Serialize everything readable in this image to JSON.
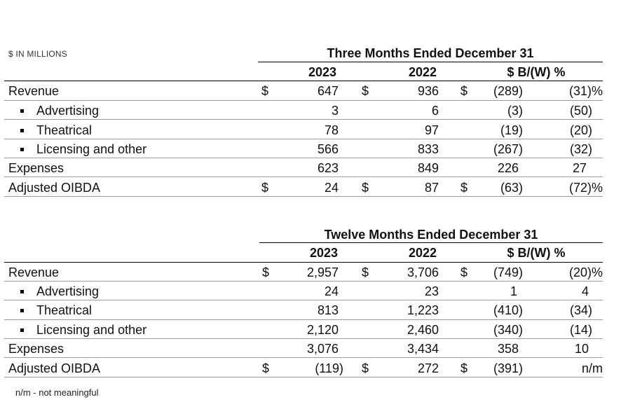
{
  "units_label": "$ IN MILLIONS",
  "footnote": "n/m - not meaningful",
  "tables": [
    {
      "period": "Three Months Ended December 31",
      "columns": [
        "2023",
        "2022",
        "$ B/(W) %"
      ],
      "rows": [
        {
          "label": "Revenue",
          "bullet": false,
          "c1": "$",
          "v1": "647",
          "c2": "$",
          "v2": "936",
          "c3": "$",
          "v3": "(289)",
          "v4": "(31)%"
        },
        {
          "label": "Advertising",
          "bullet": true,
          "c1": "",
          "v1": "3",
          "c2": "",
          "v2": "6",
          "c3": "",
          "v3": "(3)",
          "v4": "(50)"
        },
        {
          "label": "Theatrical",
          "bullet": true,
          "c1": "",
          "v1": "78",
          "c2": "",
          "v2": "97",
          "c3": "",
          "v3": "(19)",
          "v4": "(20)"
        },
        {
          "label": "Licensing and other",
          "bullet": true,
          "c1": "",
          "v1": "566",
          "c2": "",
          "v2": "833",
          "c3": "",
          "v3": "(267)",
          "v4": "(32)"
        },
        {
          "label": "Expenses",
          "bullet": false,
          "c1": "",
          "v1": "623",
          "c2": "",
          "v2": "849",
          "c3": "",
          "v3": "226",
          "v4": "27"
        },
        {
          "label": "Adjusted OIBDA",
          "bullet": false,
          "c1": "$",
          "v1": "24",
          "c2": "$",
          "v2": "87",
          "c3": "$",
          "v3": "(63)",
          "v4": "(72)%"
        }
      ]
    },
    {
      "period": "Twelve Months Ended December 31",
      "columns": [
        "2023",
        "2022",
        "$ B/(W) %"
      ],
      "rows": [
        {
          "label": "Revenue",
          "bullet": false,
          "c1": "$",
          "v1": "2,957",
          "c2": "$",
          "v2": "3,706",
          "c3": "$",
          "v3": "(749)",
          "v4": "(20)%"
        },
        {
          "label": "Advertising",
          "bullet": true,
          "c1": "",
          "v1": "24",
          "c2": "",
          "v2": "23",
          "c3": "",
          "v3": "1",
          "v4": "4"
        },
        {
          "label": "Theatrical",
          "bullet": true,
          "c1": "",
          "v1": "813",
          "c2": "",
          "v2": "1,223",
          "c3": "",
          "v3": "(410)",
          "v4": "(34)"
        },
        {
          "label": "Licensing and other",
          "bullet": true,
          "c1": "",
          "v1": "2,120",
          "c2": "",
          "v2": "2,460",
          "c3": "",
          "v3": "(340)",
          "v4": "(14)"
        },
        {
          "label": "Expenses",
          "bullet": false,
          "c1": "",
          "v1": "3,076",
          "c2": "",
          "v2": "3,434",
          "c3": "",
          "v3": "358",
          "v4": "10"
        },
        {
          "label": "Adjusted OIBDA",
          "bullet": false,
          "c1": "$",
          "v1": "(119)",
          "c2": "$",
          "v2": "272",
          "c3": "$",
          "v3": "(391)",
          "v4": "n/m"
        }
      ]
    }
  ]
}
